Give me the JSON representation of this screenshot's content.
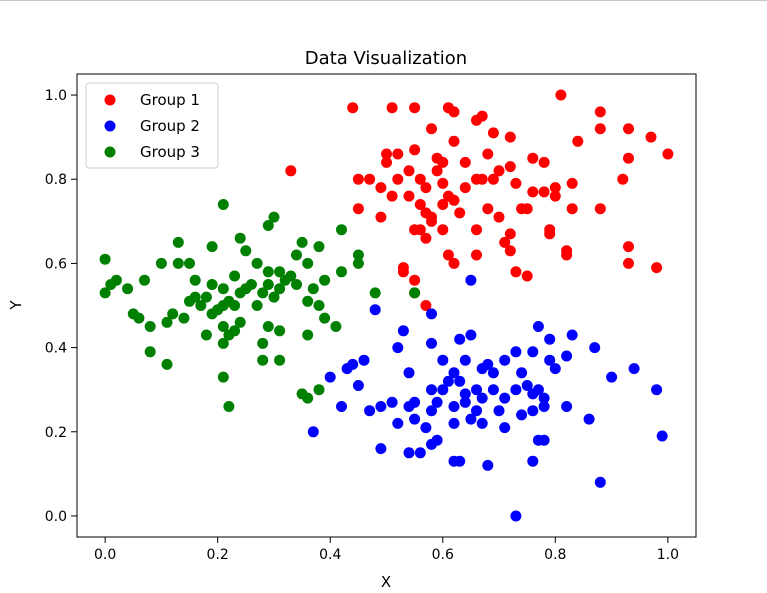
{
  "chart_data": {
    "type": "scatter",
    "title": "Data Visualization",
    "xlabel": "X",
    "ylabel": "Y",
    "xlim": [
      -0.05,
      1.05
    ],
    "ylim": [
      -0.05,
      1.05
    ],
    "xticks": [
      "0.0",
      "0.2",
      "0.4",
      "0.6",
      "0.8",
      "1.0"
    ],
    "yticks": [
      "0.0",
      "0.2",
      "0.4",
      "0.6",
      "0.8",
      "1.0"
    ],
    "grid": false,
    "legend": "upper-left",
    "series": [
      {
        "name": "Group 1",
        "color": "#ff0000",
        "points": [
          [
            0.44,
            0.97
          ],
          [
            0.51,
            0.97
          ],
          [
            0.55,
            0.97
          ],
          [
            0.61,
            0.97
          ],
          [
            0.67,
            0.95
          ],
          [
            0.81,
            1.0
          ],
          [
            0.88,
            0.96
          ],
          [
            0.66,
            0.94
          ],
          [
            0.58,
            0.92
          ],
          [
            0.62,
            0.96
          ],
          [
            0.69,
            0.91
          ],
          [
            0.72,
            0.9
          ],
          [
            0.88,
            0.92
          ],
          [
            0.93,
            0.92
          ],
          [
            0.97,
            0.9
          ],
          [
            1.0,
            0.86
          ],
          [
            0.93,
            0.85
          ],
          [
            0.84,
            0.89
          ],
          [
            0.76,
            0.85
          ],
          [
            0.78,
            0.84
          ],
          [
            0.5,
            0.86
          ],
          [
            0.5,
            0.84
          ],
          [
            0.52,
            0.86
          ],
          [
            0.55,
            0.87
          ],
          [
            0.59,
            0.85
          ],
          [
            0.6,
            0.84
          ],
          [
            0.62,
            0.89
          ],
          [
            0.64,
            0.84
          ],
          [
            0.68,
            0.86
          ],
          [
            0.72,
            0.83
          ],
          [
            0.45,
            0.8
          ],
          [
            0.47,
            0.8
          ],
          [
            0.49,
            0.78
          ],
          [
            0.52,
            0.8
          ],
          [
            0.54,
            0.82
          ],
          [
            0.56,
            0.8
          ],
          [
            0.57,
            0.78
          ],
          [
            0.59,
            0.82
          ],
          [
            0.6,
            0.79
          ],
          [
            0.62,
            0.75
          ],
          [
            0.64,
            0.78
          ],
          [
            0.66,
            0.8
          ],
          [
            0.67,
            0.8
          ],
          [
            0.69,
            0.8
          ],
          [
            0.7,
            0.82
          ],
          [
            0.73,
            0.79
          ],
          [
            0.76,
            0.77
          ],
          [
            0.8,
            0.78
          ],
          [
            0.83,
            0.79
          ],
          [
            0.92,
            0.8
          ],
          [
            0.45,
            0.73
          ],
          [
            0.49,
            0.71
          ],
          [
            0.51,
            0.76
          ],
          [
            0.54,
            0.76
          ],
          [
            0.56,
            0.74
          ],
          [
            0.57,
            0.72
          ],
          [
            0.58,
            0.71
          ],
          [
            0.6,
            0.74
          ],
          [
            0.61,
            0.76
          ],
          [
            0.63,
            0.72
          ],
          [
            0.66,
            0.68
          ],
          [
            0.68,
            0.73
          ],
          [
            0.7,
            0.71
          ],
          [
            0.72,
            0.67
          ],
          [
            0.74,
            0.73
          ],
          [
            0.75,
            0.73
          ],
          [
            0.78,
            0.77
          ],
          [
            0.8,
            0.76
          ],
          [
            0.83,
            0.73
          ],
          [
            0.88,
            0.73
          ],
          [
            0.55,
            0.68
          ],
          [
            0.56,
            0.68
          ],
          [
            0.57,
            0.66
          ],
          [
            0.58,
            0.7
          ],
          [
            0.6,
            0.68
          ],
          [
            0.61,
            0.62
          ],
          [
            0.62,
            0.6
          ],
          [
            0.66,
            0.62
          ],
          [
            0.71,
            0.65
          ],
          [
            0.72,
            0.63
          ],
          [
            0.73,
            0.58
          ],
          [
            0.75,
            0.57
          ],
          [
            0.79,
            0.67
          ],
          [
            0.79,
            0.68
          ],
          [
            0.82,
            0.63
          ],
          [
            0.82,
            0.62
          ],
          [
            0.93,
            0.64
          ],
          [
            0.93,
            0.6
          ],
          [
            0.98,
            0.59
          ],
          [
            0.53,
            0.59
          ],
          [
            0.53,
            0.58
          ],
          [
            0.55,
            0.56
          ],
          [
            0.55,
            0.53
          ],
          [
            0.57,
            0.5
          ],
          [
            0.33,
            0.82
          ]
        ]
      },
      {
        "name": "Group 2",
        "color": "#0000ff",
        "points": [
          [
            0.65,
            0.56
          ],
          [
            0.48,
            0.49
          ],
          [
            0.58,
            0.48
          ],
          [
            0.53,
            0.44
          ],
          [
            0.52,
            0.4
          ],
          [
            0.58,
            0.41
          ],
          [
            0.63,
            0.42
          ],
          [
            0.65,
            0.43
          ],
          [
            0.73,
            0.39
          ],
          [
            0.77,
            0.45
          ],
          [
            0.79,
            0.42
          ],
          [
            0.83,
            0.43
          ],
          [
            0.87,
            0.4
          ],
          [
            0.44,
            0.36
          ],
          [
            0.46,
            0.37
          ],
          [
            0.43,
            0.35
          ],
          [
            0.4,
            0.33
          ],
          [
            0.45,
            0.31
          ],
          [
            0.6,
            0.37
          ],
          [
            0.62,
            0.34
          ],
          [
            0.64,
            0.37
          ],
          [
            0.67,
            0.35
          ],
          [
            0.68,
            0.36
          ],
          [
            0.69,
            0.34
          ],
          [
            0.71,
            0.37
          ],
          [
            0.74,
            0.34
          ],
          [
            0.76,
            0.39
          ],
          [
            0.79,
            0.37
          ],
          [
            0.82,
            0.38
          ],
          [
            0.9,
            0.33
          ],
          [
            0.94,
            0.35
          ],
          [
            0.54,
            0.34
          ],
          [
            0.58,
            0.3
          ],
          [
            0.6,
            0.3
          ],
          [
            0.61,
            0.32
          ],
          [
            0.63,
            0.32
          ],
          [
            0.64,
            0.29
          ],
          [
            0.66,
            0.3
          ],
          [
            0.67,
            0.28
          ],
          [
            0.69,
            0.3
          ],
          [
            0.71,
            0.28
          ],
          [
            0.73,
            0.3
          ],
          [
            0.75,
            0.31
          ],
          [
            0.76,
            0.29
          ],
          [
            0.77,
            0.3
          ],
          [
            0.78,
            0.28
          ],
          [
            0.8,
            0.35
          ],
          [
            0.98,
            0.3
          ],
          [
            0.42,
            0.26
          ],
          [
            0.47,
            0.25
          ],
          [
            0.49,
            0.26
          ],
          [
            0.51,
            0.27
          ],
          [
            0.54,
            0.26
          ],
          [
            0.55,
            0.27
          ],
          [
            0.58,
            0.25
          ],
          [
            0.59,
            0.27
          ],
          [
            0.62,
            0.26
          ],
          [
            0.64,
            0.27
          ],
          [
            0.66,
            0.25
          ],
          [
            0.67,
            0.22
          ],
          [
            0.7,
            0.25
          ],
          [
            0.74,
            0.24
          ],
          [
            0.76,
            0.25
          ],
          [
            0.78,
            0.26
          ],
          [
            0.82,
            0.26
          ],
          [
            0.86,
            0.23
          ],
          [
            0.37,
            0.2
          ],
          [
            0.52,
            0.22
          ],
          [
            0.55,
            0.23
          ],
          [
            0.57,
            0.21
          ],
          [
            0.62,
            0.22
          ],
          [
            0.65,
            0.23
          ],
          [
            0.71,
            0.21
          ],
          [
            0.77,
            0.18
          ],
          [
            0.78,
            0.18
          ],
          [
            0.49,
            0.16
          ],
          [
            0.54,
            0.15
          ],
          [
            0.56,
            0.15
          ],
          [
            0.58,
            0.17
          ],
          [
            0.59,
            0.18
          ],
          [
            0.62,
            0.13
          ],
          [
            0.63,
            0.13
          ],
          [
            0.68,
            0.12
          ],
          [
            0.76,
            0.13
          ],
          [
            0.99,
            0.19
          ],
          [
            0.88,
            0.08
          ],
          [
            0.73,
            0.0
          ]
        ]
      },
      {
        "name": "Group 3",
        "color": "#008000",
        "points": [
          [
            0.21,
            0.74
          ],
          [
            0.3,
            0.71
          ],
          [
            0.29,
            0.69
          ],
          [
            0.13,
            0.65
          ],
          [
            0.19,
            0.64
          ],
          [
            0.24,
            0.66
          ],
          [
            0.35,
            0.65
          ],
          [
            0.38,
            0.64
          ],
          [
            0.42,
            0.68
          ],
          [
            0.0,
            0.61
          ],
          [
            0.01,
            0.55
          ],
          [
            0.02,
            0.56
          ],
          [
            0.04,
            0.54
          ],
          [
            0.07,
            0.56
          ],
          [
            0.1,
            0.6
          ],
          [
            0.13,
            0.6
          ],
          [
            0.15,
            0.6
          ],
          [
            0.16,
            0.56
          ],
          [
            0.19,
            0.55
          ],
          [
            0.21,
            0.54
          ],
          [
            0.23,
            0.57
          ],
          [
            0.25,
            0.63
          ],
          [
            0.26,
            0.55
          ],
          [
            0.27,
            0.6
          ],
          [
            0.29,
            0.58
          ],
          [
            0.31,
            0.58
          ],
          [
            0.33,
            0.57
          ],
          [
            0.34,
            0.62
          ],
          [
            0.36,
            0.6
          ],
          [
            0.39,
            0.56
          ],
          [
            0.42,
            0.58
          ],
          [
            0.45,
            0.6
          ],
          [
            0.45,
            0.62
          ],
          [
            0.0,
            0.53
          ],
          [
            0.05,
            0.48
          ],
          [
            0.06,
            0.47
          ],
          [
            0.11,
            0.46
          ],
          [
            0.12,
            0.48
          ],
          [
            0.15,
            0.51
          ],
          [
            0.16,
            0.52
          ],
          [
            0.17,
            0.5
          ],
          [
            0.18,
            0.52
          ],
          [
            0.19,
            0.48
          ],
          [
            0.2,
            0.49
          ],
          [
            0.21,
            0.5
          ],
          [
            0.22,
            0.51
          ],
          [
            0.23,
            0.5
          ],
          [
            0.24,
            0.53
          ],
          [
            0.25,
            0.54
          ],
          [
            0.27,
            0.5
          ],
          [
            0.28,
            0.53
          ],
          [
            0.29,
            0.55
          ],
          [
            0.3,
            0.52
          ],
          [
            0.31,
            0.54
          ],
          [
            0.32,
            0.56
          ],
          [
            0.34,
            0.55
          ],
          [
            0.36,
            0.51
          ],
          [
            0.37,
            0.54
          ],
          [
            0.38,
            0.5
          ],
          [
            0.39,
            0.47
          ],
          [
            0.48,
            0.53
          ],
          [
            0.55,
            0.53
          ],
          [
            0.08,
            0.45
          ],
          [
            0.14,
            0.47
          ],
          [
            0.18,
            0.43
          ],
          [
            0.21,
            0.45
          ],
          [
            0.22,
            0.43
          ],
          [
            0.23,
            0.44
          ],
          [
            0.24,
            0.46
          ],
          [
            0.28,
            0.41
          ],
          [
            0.29,
            0.45
          ],
          [
            0.31,
            0.44
          ],
          [
            0.36,
            0.43
          ],
          [
            0.41,
            0.45
          ],
          [
            0.08,
            0.39
          ],
          [
            0.11,
            0.36
          ],
          [
            0.21,
            0.41
          ],
          [
            0.28,
            0.37
          ],
          [
            0.31,
            0.37
          ],
          [
            0.21,
            0.33
          ],
          [
            0.35,
            0.29
          ],
          [
            0.36,
            0.28
          ],
          [
            0.38,
            0.3
          ],
          [
            0.22,
            0.26
          ]
        ]
      }
    ]
  }
}
